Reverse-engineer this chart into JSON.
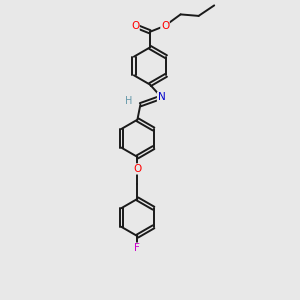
{
  "bg_color": "#e8e8e8",
  "bond_color": "#1a1a1a",
  "atom_colors": {
    "O": "#ff0000",
    "N": "#0000cc",
    "F": "#cc00cc",
    "H": "#6699aa"
  },
  "figsize": [
    3.0,
    3.0
  ],
  "dpi": 100,
  "xlim": [
    0,
    6
  ],
  "ylim": [
    0,
    10
  ]
}
